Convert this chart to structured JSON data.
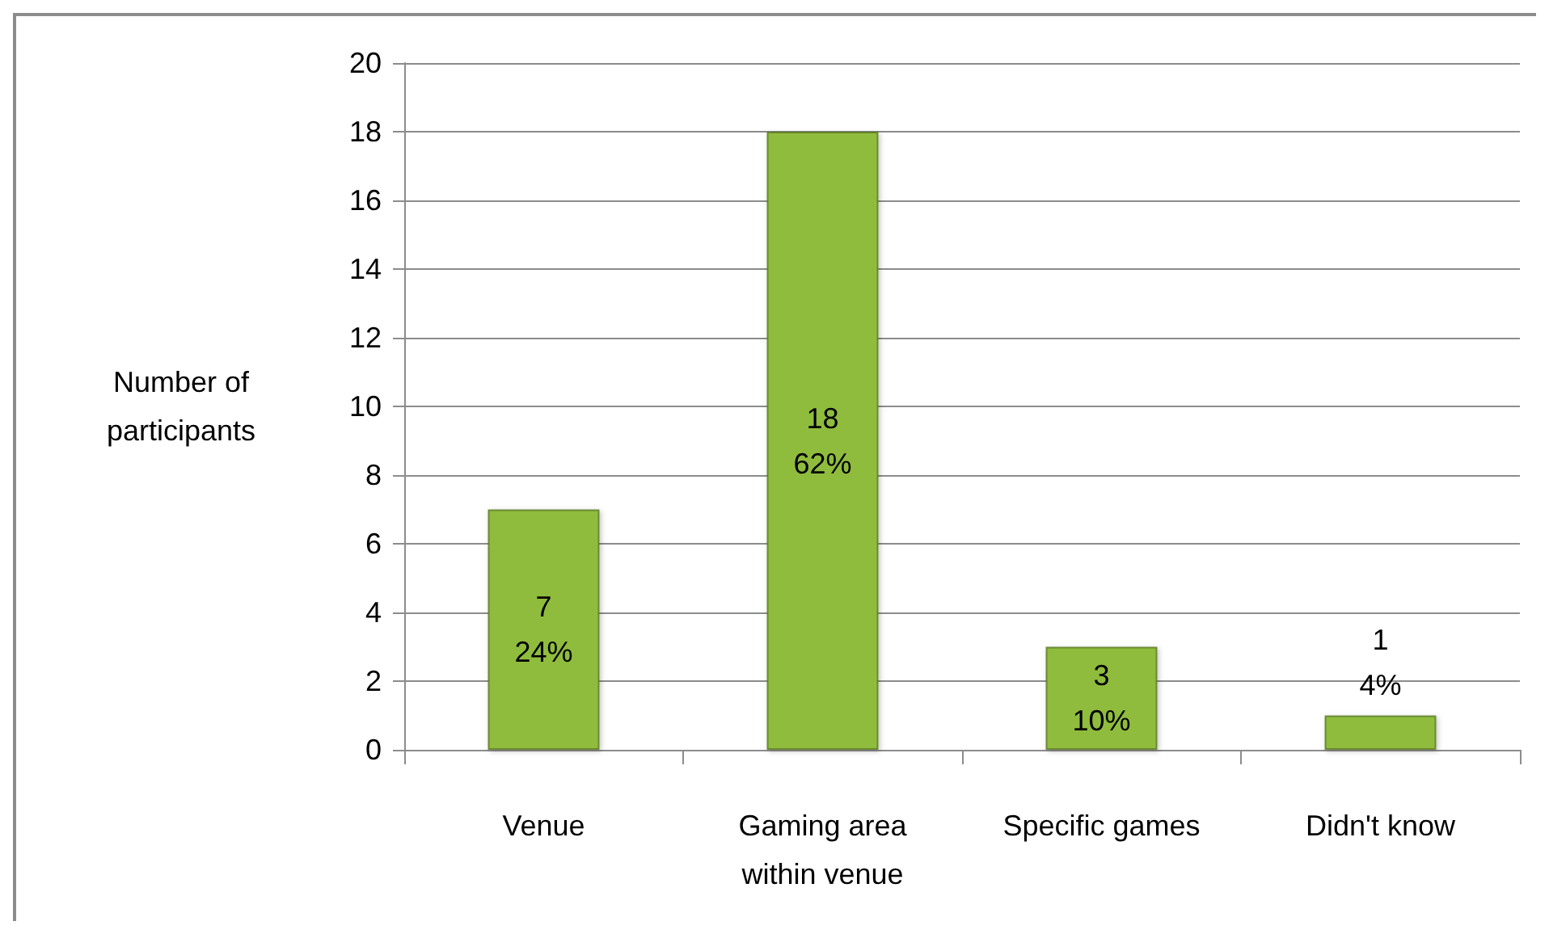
{
  "chart_data": {
    "type": "bar",
    "ylabel": "Number of\nparticipants",
    "categories": [
      "Venue",
      "Gaming area\nwithin venue",
      "Specific games",
      "Didn't know"
    ],
    "values": [
      7,
      18,
      3,
      1
    ],
    "value_labels": [
      "7\n24%",
      "18\n62%",
      "3\n10%",
      "1\n4%"
    ],
    "color": "#8fbc3c",
    "ylim": [
      0,
      20
    ],
    "yticks": [
      0,
      2,
      4,
      6,
      8,
      10,
      12,
      14,
      16,
      18,
      20
    ],
    "grid": "y"
  }
}
